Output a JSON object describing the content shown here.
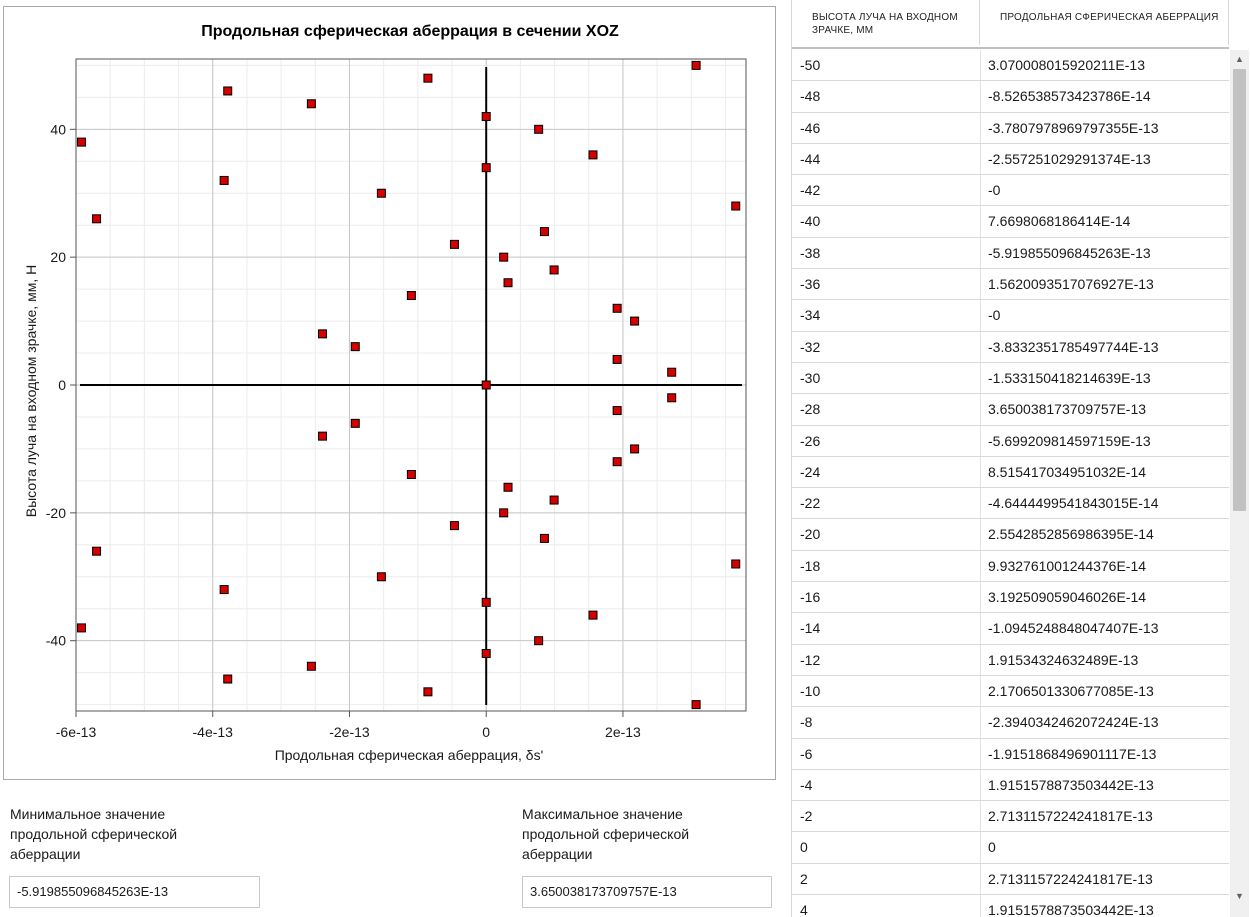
{
  "chart_data": {
    "type": "scatter",
    "title": "Продольная сферическая аберрация в сечении XOZ",
    "xlabel": "Продольная сферическая аберрация, δs'",
    "ylabel": "Высота луча на входном зрачке, мм, H",
    "xlim": [
      -6e-13,
      3.8e-13
    ],
    "ylim": [
      -51,
      51
    ],
    "xticks": [
      -6e-13,
      -4e-13,
      -2e-13,
      0,
      2e-13
    ],
    "xtick_labels": [
      "-6e-13",
      "-4e-13",
      "-2e-13",
      "0",
      "2e-13"
    ],
    "yticks": [
      -40,
      -20,
      0,
      20,
      40
    ],
    "ytick_labels": [
      "-40",
      "-20",
      "0",
      "20",
      "40"
    ],
    "grid": true,
    "marker_color": "#d40000",
    "x": [
      3.070008015920211e-13,
      -8.526538573423786e-14,
      -3.7807978969797355e-13,
      -2.557251029291374e-13,
      0,
      7.6698068186414e-14,
      -5.919855096845263e-13,
      1.5620093517076927e-13,
      0,
      -3.8332351785497744e-13,
      -1.533150418214639e-13,
      3.650038173709757e-13,
      -5.699209814597159e-13,
      8.515417034951032e-14,
      -4.6444499541843015e-14,
      2.5542852856986395e-14,
      9.932761001244376e-14,
      3.192509059046026e-14,
      -1.0945248848047407e-13,
      1.91534324632489e-13,
      2.1706501330677085e-13,
      -2.3940342462072424e-13,
      -1.9151868496901117e-13,
      1.9151578873503442e-13,
      2.7131157224241817e-13,
      0,
      2.7131157224241817e-13,
      1.9151578873503442e-13,
      -1.9151868496901117e-13,
      -2.3940342462072424e-13,
      2.1706501330677085e-13,
      1.91534324632489e-13,
      -1.0945248848047407e-13,
      3.192509059046026e-14,
      9.932761001244376e-14,
      2.5542852856986395e-14,
      -4.6444499541843015e-14,
      8.515417034951032e-14,
      -5.699209814597159e-13,
      3.650038173709757e-13,
      -1.533150418214639e-13,
      -3.8332351785497744e-13,
      0,
      1.5620093517076927e-13,
      -5.919855096845263e-13,
      7.6698068186414e-14,
      0,
      -2.557251029291374e-13,
      -3.7807978969797355e-13,
      -8.526538573423786e-14,
      3.070008015920211e-13
    ],
    "y": [
      -50,
      -48,
      -46,
      -44,
      -42,
      -40,
      -38,
      -36,
      -34,
      -32,
      -30,
      -28,
      -26,
      -24,
      -22,
      -20,
      -18,
      -16,
      -14,
      -12,
      -10,
      -8,
      -6,
      -4,
      -2,
      0,
      2,
      4,
      6,
      8,
      10,
      12,
      14,
      16,
      18,
      20,
      22,
      24,
      26,
      28,
      30,
      32,
      34,
      36,
      38,
      40,
      42,
      44,
      46,
      48,
      50
    ]
  },
  "stats": {
    "min_label": "Минимальное значение продольной сферической аберрации",
    "min_value": "-5.919855096845263E-13",
    "max_label": "Максимальное значение продольной сферической аберрации",
    "max_value": "3.650038173709757E-13"
  },
  "table": {
    "col1_header": "Высота луча на входном зрачке, мм",
    "col2_header": "Продольная сферическая аберрация",
    "rows": [
      [
        "-50",
        "3.070008015920211E-13"
      ],
      [
        "-48",
        "-8.526538573423786E-14"
      ],
      [
        "-46",
        "-3.7807978969797355E-13"
      ],
      [
        "-44",
        "-2.557251029291374E-13"
      ],
      [
        "-42",
        "-0"
      ],
      [
        "-40",
        "7.6698068186414E-14"
      ],
      [
        "-38",
        "-5.919855096845263E-13"
      ],
      [
        "-36",
        "1.5620093517076927E-13"
      ],
      [
        "-34",
        "-0"
      ],
      [
        "-32",
        "-3.8332351785497744E-13"
      ],
      [
        "-30",
        "-1.533150418214639E-13"
      ],
      [
        "-28",
        "3.650038173709757E-13"
      ],
      [
        "-26",
        "-5.699209814597159E-13"
      ],
      [
        "-24",
        "8.515417034951032E-14"
      ],
      [
        "-22",
        "-4.6444499541843015E-14"
      ],
      [
        "-20",
        "2.5542852856986395E-14"
      ],
      [
        "-18",
        "9.932761001244376E-14"
      ],
      [
        "-16",
        "3.192509059046026E-14"
      ],
      [
        "-14",
        "-1.0945248848047407E-13"
      ],
      [
        "-12",
        "1.91534324632489E-13"
      ],
      [
        "-10",
        "2.1706501330677085E-13"
      ],
      [
        "-8",
        "-2.3940342462072424E-13"
      ],
      [
        "-6",
        "-1.9151868496901117E-13"
      ],
      [
        "-4",
        "1.9151578873503442E-13"
      ],
      [
        "-2",
        "2.7131157224241817E-13"
      ],
      [
        "0",
        "0"
      ],
      [
        "2",
        "2.7131157224241817E-13"
      ],
      [
        "4",
        "1.9151578873503442E-13"
      ]
    ]
  }
}
